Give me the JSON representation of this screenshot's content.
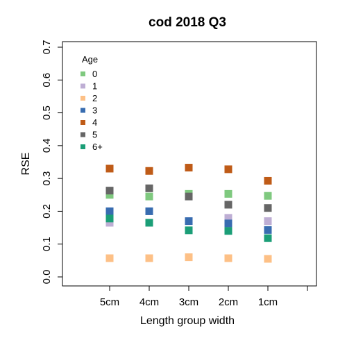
{
  "chart_data": {
    "type": "scatter",
    "title": "cod 2018 Q3",
    "xlabel": "Length group width",
    "ylabel": "RSE",
    "categories": [
      "5cm",
      "4cm",
      "3cm",
      "2cm",
      "1cm",
      ""
    ],
    "ylim": [
      0,
      0.7
    ],
    "yticks": [
      "0.0",
      "0.1",
      "0.2",
      "0.3",
      "0.4",
      "0.5",
      "0.6",
      "0.7"
    ],
    "grid": false,
    "legend": {
      "title": "Age",
      "placement": "top-left"
    },
    "series": [
      {
        "name": "0",
        "color": "#7fc97f",
        "values": [
          0.25,
          0.245,
          0.253,
          0.253,
          0.247
        ]
      },
      {
        "name": "1",
        "color": "#beaed4",
        "values": [
          0.165,
          null,
          null,
          0.18,
          0.17
        ]
      },
      {
        "name": "2",
        "color": "#fdc086",
        "values": [
          0.057,
          0.057,
          0.06,
          0.057,
          0.055
        ]
      },
      {
        "name": "3",
        "color": "#386cb0",
        "values": [
          0.2,
          0.2,
          0.17,
          0.163,
          0.143
        ]
      },
      {
        "name": "4",
        "color": "#bf5b17",
        "values": [
          0.33,
          0.323,
          0.333,
          0.328,
          0.293
        ]
      },
      {
        "name": "5",
        "color": "#666666",
        "values": [
          0.263,
          0.27,
          0.245,
          0.22,
          0.21
        ]
      },
      {
        "name": "6+",
        "color": "#1b9e77",
        "values": [
          0.178,
          0.165,
          0.142,
          0.14,
          0.118
        ]
      }
    ]
  }
}
